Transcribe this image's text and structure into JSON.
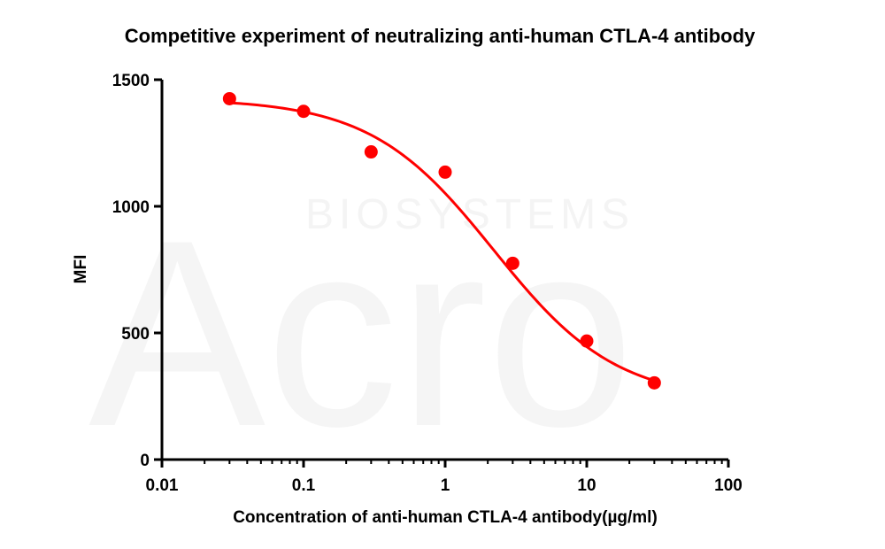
{
  "chart_data": {
    "type": "scatter",
    "title": "Competitive experiment of neutralizing anti-human CTLA-4 antibody",
    "xlabel": "Concentration of anti-human CTLA-4 antibody(µg/ml)",
    "ylabel": "MFI",
    "xscale": "log",
    "xlim": [
      0.01,
      100
    ],
    "ylim": [
      0,
      1500
    ],
    "xticks": [
      0.01,
      0.1,
      1,
      10,
      100
    ],
    "xtick_labels": [
      "0.01",
      "0.1",
      "1",
      "10",
      "100"
    ],
    "yticks": [
      0,
      500,
      1000,
      1500
    ],
    "ytick_labels": [
      "0",
      "500",
      "1000",
      "1500"
    ],
    "grid": false,
    "series": [
      {
        "x": [
          0.03,
          0.1,
          0.3,
          1,
          3,
          10,
          30
        ],
        "y": [
          1425,
          1375,
          1215,
          1135,
          775,
          468,
          303
        ],
        "color": "#ff0000",
        "fit": "sigmoidal"
      }
    ]
  },
  "watermark": {
    "brand": "Acro",
    "text": "BIOSYSTEMS"
  }
}
